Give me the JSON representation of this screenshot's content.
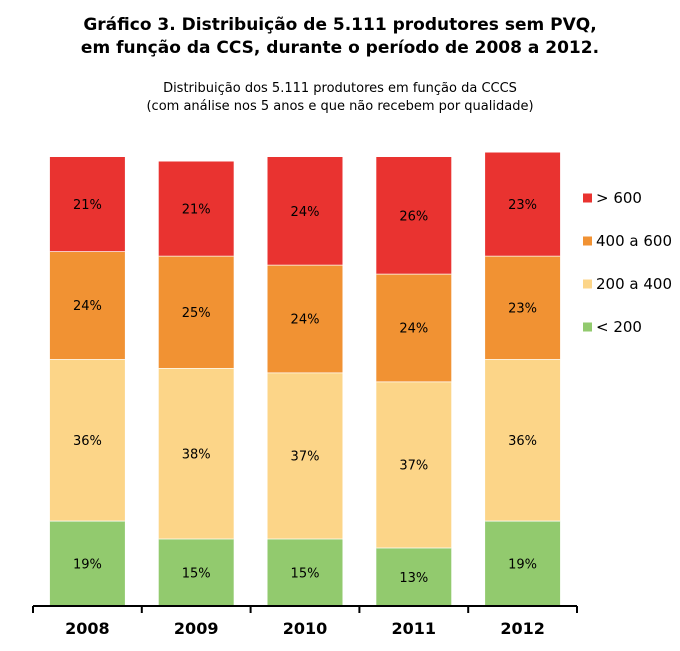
{
  "header": {
    "title_line1": "Gráfico 3. Distribuição de 5.111 produtores sem PVQ,",
    "title_line2": "em função da CCS, durante o período de 2008 a 2012.",
    "subtitle_line1": "Distribuição dos 5.111 produtores em função da CCCS",
    "subtitle_line2": "(com análise nos 5 anos e que não recebem por qualidade)"
  },
  "chart_data": {
    "type": "bar",
    "stacked": true,
    "categories": [
      "2008",
      "2009",
      "2010",
      "2011",
      "2012"
    ],
    "series": [
      {
        "name": "< 200",
        "color": "#92ca6e",
        "values": [
          19,
          15,
          15,
          13,
          19
        ],
        "labels": [
          "19%",
          "15%",
          "15%",
          "13%",
          "19%"
        ]
      },
      {
        "name": "200 a 400",
        "color": "#fcd588",
        "values": [
          36,
          38,
          37,
          37,
          36
        ],
        "labels": [
          "36%",
          "38%",
          "37%",
          "37%",
          "36%"
        ]
      },
      {
        "name": "400 a 600",
        "color": "#f19233",
        "values": [
          24,
          25,
          24,
          24,
          23
        ],
        "labels": [
          "24%",
          "25%",
          "24%",
          "24%",
          "23%"
        ]
      },
      {
        "name": "> 600",
        "color": "#e93330",
        "values": [
          21,
          21,
          24,
          26,
          23
        ],
        "labels": [
          "21%",
          "21%",
          "24%",
          "26%",
          "23%"
        ]
      }
    ],
    "legend_order": [
      "> 600",
      "400 a 600",
      "200 a 400",
      "< 200"
    ],
    "legend_position": "right",
    "ylim": [
      0,
      100
    ],
    "grid": false
  }
}
